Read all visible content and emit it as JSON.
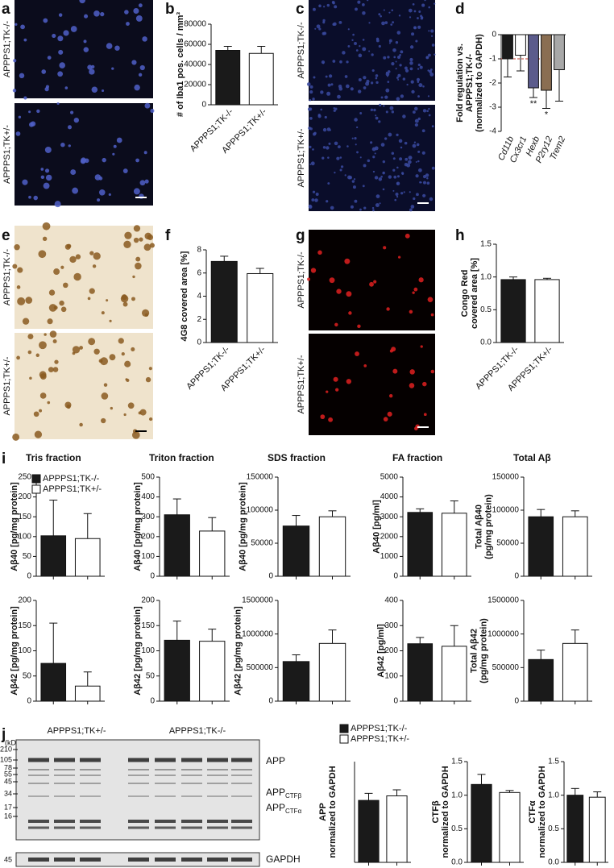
{
  "images": [
    {
      "letter": "a",
      "labels": [
        "APPPS1;TK-/-",
        "APPPS1;TK+/-"
      ]
    },
    {
      "letter": "c",
      "labels": [
        "APPPS1;TK-/-",
        "APPPS1;TK+/-"
      ]
    },
    {
      "letter": "e",
      "labels": [
        "APPPS1;TK-/-",
        "APPPS1;TK+/-"
      ]
    },
    {
      "letter": "g",
      "labels": [
        "APPPS1;TK-/-",
        "APPPS1;TK+/-"
      ]
    }
  ],
  "blot": {
    "letter": "j",
    "groups": [
      "APPPS1;TK+/-",
      "APPPS1;TK-/-"
    ],
    "unit": "(kD)",
    "markers": [
      210,
      105,
      78,
      55,
      45,
      34,
      17,
      16
    ],
    "gapdh_marker": 45,
    "bands": [
      {
        "text": "APP"
      },
      {
        "text": "APP",
        "sub": "CTFβ"
      },
      {
        "text": "APP",
        "sub": "CTFα"
      },
      {
        "text": "GAPDH"
      }
    ]
  },
  "chart_data": [
    {
      "type": "bar",
      "panel": "b",
      "ylabel": [
        "# of Iba1 pos. cells / mm³"
      ],
      "categories": [
        "APPPS1;TK-/-",
        "APPPS1;TK+/-"
      ],
      "values": [
        54000,
        51000
      ],
      "errors": [
        4000,
        7000
      ],
      "colors": [
        "#1a1a1a",
        "#ffffff"
      ],
      "ylim": [
        0,
        80000
      ],
      "yticks": [
        0,
        20000,
        40000,
        60000,
        80000
      ]
    },
    {
      "type": "bar",
      "panel": "d",
      "ylabel": [
        "Fold regulation vs.",
        "APPPS1;TK-/-",
        "(normalized to GAPDH)"
      ],
      "categories": [
        "Cd11b",
        "Cx3cr1",
        "Hexb",
        "P2ry12",
        "Trem2"
      ],
      "values": [
        -1.0,
        -0.85,
        -2.2,
        -2.3,
        -1.45
      ],
      "errors": [
        0.75,
        0.65,
        0.4,
        0.75,
        1.3
      ],
      "colors": [
        "#1a1a1a",
        "#ffffff",
        "#5b5b8c",
        "#8a6e52",
        "#a8a8a8"
      ],
      "significance": [
        null,
        null,
        "**",
        "*",
        null
      ],
      "reference_line": -1,
      "reference_color": "#c0392b",
      "ylim": [
        -4,
        0
      ],
      "yticks": [
        -4,
        -3,
        -2,
        -1,
        0
      ]
    },
    {
      "type": "bar",
      "panel": "f",
      "ylabel": [
        "4G8 covered area [%]"
      ],
      "categories": [
        "APPPS1;TK-/-",
        "APPPS1;TK+/-"
      ],
      "values": [
        7.0,
        5.95
      ],
      "errors": [
        0.45,
        0.45
      ],
      "colors": [
        "#1a1a1a",
        "#ffffff"
      ],
      "ylim": [
        0,
        8
      ],
      "yticks": [
        0,
        2,
        4,
        6,
        8
      ]
    },
    {
      "type": "bar",
      "panel": "h",
      "ylabel": [
        "Congo Red",
        "covered area [%]"
      ],
      "categories": [
        "APPPS1;TK-/-",
        "APPPS1;TK+/-"
      ],
      "values": [
        0.96,
        0.96
      ],
      "errors": [
        0.04,
        0.02
      ],
      "colors": [
        "#1a1a1a",
        "#ffffff"
      ],
      "ylim": [
        0,
        1.5
      ],
      "yticks": [
        {
          "value": 0,
          "label": "0.0"
        },
        0.5,
        {
          "value": 1,
          "label": "1.0"
        },
        1.5
      ]
    },
    {
      "type": "bar",
      "panel": "i",
      "title": "Tris fraction",
      "legend": [
        "APPPS1;TK-/-",
        "APPPS1;TK+/-"
      ],
      "ylabel": [
        "Aβ40 [pg/mg protein]"
      ],
      "values": [
        102,
        95
      ],
      "errors": [
        90,
        63
      ],
      "colors": [
        "#1a1a1a",
        "#ffffff"
      ],
      "ylim": [
        0,
        250
      ],
      "yticks": [
        0,
        50,
        100,
        150,
        200,
        250
      ]
    },
    {
      "type": "bar",
      "title": "Triton fraction",
      "ylabel": [
        "Aβ40 [pg/mg protein]"
      ],
      "values": [
        310,
        228
      ],
      "errors": [
        80,
        68
      ],
      "colors": [
        "#1a1a1a",
        "#ffffff"
      ],
      "ylim": [
        0,
        500
      ],
      "yticks": [
        0,
        100,
        200,
        300,
        400,
        500
      ]
    },
    {
      "type": "bar",
      "title": "SDS fraction",
      "ylabel": [
        "Aβ40 [pg/mg protein]"
      ],
      "values": [
        76000,
        90000
      ],
      "errors": [
        16000,
        9000
      ],
      "colors": [
        "#1a1a1a",
        "#ffffff"
      ],
      "ylim": [
        0,
        150000
      ],
      "yticks": [
        0,
        50000,
        100000,
        150000
      ]
    },
    {
      "type": "bar",
      "title": "FA fraction",
      "ylabel": [
        "Aβ40 [pg/ml]"
      ],
      "values": [
        3220,
        3180
      ],
      "errors": [
        180,
        620
      ],
      "colors": [
        "#1a1a1a",
        "#ffffff"
      ],
      "ylim": [
        0,
        5000
      ],
      "yticks": [
        0,
        1000,
        2000,
        3000,
        4000,
        5000
      ]
    },
    {
      "type": "bar",
      "title": "Total Aβ",
      "ylabel": [
        "Total Aβ40",
        "(pg/mg protein)"
      ],
      "values": [
        90000,
        90000
      ],
      "errors": [
        11000,
        9000
      ],
      "colors": [
        "#1a1a1a",
        "#ffffff"
      ],
      "ylim": [
        0,
        150000
      ],
      "yticks": [
        0,
        50000,
        100000,
        150000
      ]
    },
    {
      "type": "bar",
      "ylabel": [
        "Aβ42 [pg/mg protein]"
      ],
      "values": [
        75,
        30
      ],
      "errors": [
        80,
        28
      ],
      "colors": [
        "#1a1a1a",
        "#ffffff"
      ],
      "ylim": [
        0,
        200
      ],
      "yticks": [
        0,
        50,
        100,
        150,
        200
      ]
    },
    {
      "type": "bar",
      "ylabel": [
        "Aβ42 [pg/mg protein]"
      ],
      "values": [
        121,
        119
      ],
      "errors": [
        38,
        24
      ],
      "colors": [
        "#1a1a1a",
        "#ffffff"
      ],
      "ylim": [
        0,
        200
      ],
      "yticks": [
        0,
        50,
        100,
        150,
        200
      ]
    },
    {
      "type": "bar",
      "ylabel": [
        "Aβ42 [pg/mg protein]"
      ],
      "values": [
        590000,
        860000
      ],
      "errors": [
        100000,
        200000
      ],
      "colors": [
        "#1a1a1a",
        "#ffffff"
      ],
      "ylim": [
        0,
        1500000
      ],
      "yticks": [
        0,
        500000,
        1000000,
        1500000
      ]
    },
    {
      "type": "bar",
      "ylabel": [
        "Aβ42 [pg/ml]"
      ],
      "values": [
        228,
        218
      ],
      "errors": [
        25,
        82
      ],
      "colors": [
        "#1a1a1a",
        "#ffffff"
      ],
      "ylim": [
        0,
        400
      ],
      "yticks": [
        0,
        100,
        200,
        300,
        400
      ]
    },
    {
      "type": "bar",
      "ylabel": [
        "Total Aβ42",
        "(pg/mg protein)"
      ],
      "values": [
        620000,
        860000
      ],
      "errors": [
        140000,
        200000
      ],
      "colors": [
        "#1a1a1a",
        "#ffffff"
      ],
      "ylim": [
        0,
        1500000
      ],
      "yticks": [
        0,
        500000,
        1000000,
        1500000
      ]
    },
    {
      "type": "bar",
      "legend": [
        "APPPS1;TK-/-",
        "APPPS1;TK+/-"
      ],
      "ylabel": [
        "APP",
        "normalized to GAPDH"
      ],
      "values": [
        1.23,
        1.32
      ],
      "errors": [
        0.14,
        0.12
      ],
      "colors": [
        "#1a1a1a",
        "#ffffff"
      ],
      "ylim": [
        0,
        2
      ]
    },
    {
      "type": "bar",
      "ylabel": [
        "CTFβ",
        "normalized to GAPDH"
      ],
      "values": [
        1.16,
        1.04
      ],
      "errors": [
        0.15,
        0.03
      ],
      "colors": [
        "#1a1a1a",
        "#ffffff"
      ],
      "ylim": [
        0,
        1.5
      ],
      "yticks": [
        {
          "value": 0,
          "label": "0.0"
        },
        0.5,
        {
          "value": 1,
          "label": "1.0"
        },
        1.5
      ]
    },
    {
      "type": "bar",
      "ylabel": [
        "CTFα",
        "normalized to GAPDH"
      ],
      "values": [
        1.0,
        0.97
      ],
      "errors": [
        0.1,
        0.08
      ],
      "colors": [
        "#1a1a1a",
        "#ffffff"
      ],
      "ylim": [
        0,
        1.5
      ],
      "yticks": [
        {
          "value": 0,
          "label": "0.0"
        },
        0.5,
        {
          "value": 1,
          "label": "1.0"
        },
        1.5
      ]
    }
  ]
}
